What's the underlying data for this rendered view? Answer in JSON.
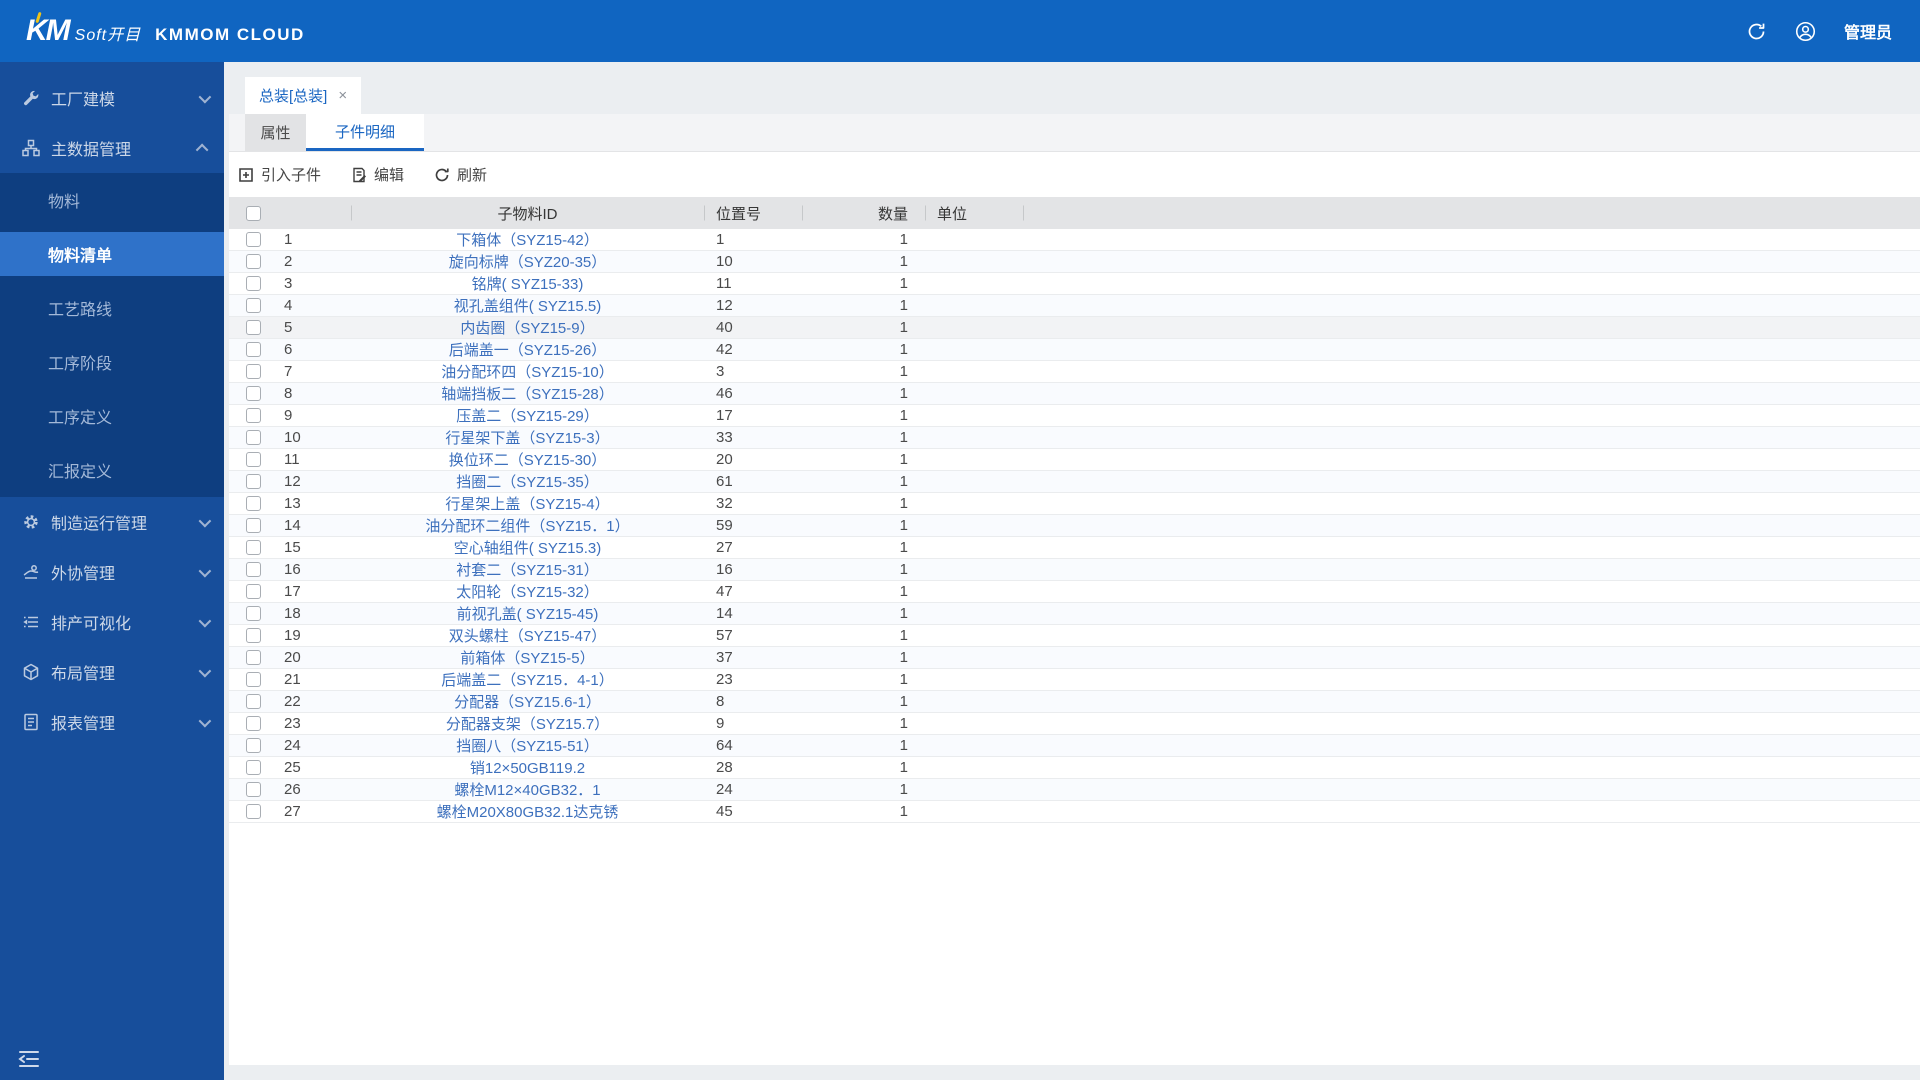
{
  "colors": {
    "header_blue": "#1065c1",
    "sidebar_navy": "#174e9b",
    "submenu_navy": "#0e3e80",
    "active_item_blue": "#2f72c9",
    "accent_blue": "#1a66c2",
    "link_blue": "#3d70bd"
  },
  "topbar": {
    "logo_km": "KM",
    "logo_soft": "Soft开目",
    "brand": "KMMOM CLOUD",
    "user_label": "管理员"
  },
  "sidebar": {
    "items": [
      {
        "label": "工厂建模",
        "icon": "wrench-icon",
        "chevron": "down"
      },
      {
        "label": "主数据管理",
        "icon": "sitemap-icon",
        "chevron": "up",
        "children": [
          "物料",
          "物料清单",
          "工艺路线",
          "工序阶段",
          "工序定义",
          "汇报定义"
        ],
        "active_child": "物料清单"
      },
      {
        "label": "制造运行管理",
        "icon": "gear-icon",
        "chevron": "down"
      },
      {
        "label": "外协管理",
        "icon": "outsourcing-icon",
        "chevron": "down"
      },
      {
        "label": "排产可视化",
        "icon": "schedule-list-icon",
        "chevron": "down"
      },
      {
        "label": "布局管理",
        "icon": "cube-icon",
        "chevron": "down"
      },
      {
        "label": "报表管理",
        "icon": "report-icon",
        "chevron": "down"
      }
    ]
  },
  "tabs": {
    "page_tab": "总装[总装]",
    "close_glyph": "×",
    "subtabs": [
      "属性",
      "子件明细"
    ],
    "active_subtab": "子件明细"
  },
  "toolbar": {
    "buttons": [
      {
        "label": "引入子件",
        "icon": "import-part-icon"
      },
      {
        "label": "编辑",
        "icon": "edit-icon"
      },
      {
        "label": "刷新",
        "icon": "refresh-icon"
      }
    ]
  },
  "table": {
    "columns": {
      "id": "子物料ID",
      "position": "位置号",
      "qty": "数量",
      "unit": "单位"
    },
    "highlighted_row_num": 5,
    "rows": [
      {
        "num": 1,
        "id": "下箱体（SYZ15-42）",
        "position": "1",
        "qty": "1",
        "unit": ""
      },
      {
        "num": 2,
        "id": "旋向标牌（SYZ20-35）",
        "position": "10",
        "qty": "1",
        "unit": ""
      },
      {
        "num": 3,
        "id": "铭牌( SYZ15-33)",
        "position": "11",
        "qty": "1",
        "unit": ""
      },
      {
        "num": 4,
        "id": "视孔盖组件( SYZ15.5)",
        "position": "12",
        "qty": "1",
        "unit": ""
      },
      {
        "num": 5,
        "id": "内齿圈（SYZ15-9）",
        "position": "40",
        "qty": "1",
        "unit": ""
      },
      {
        "num": 6,
        "id": "后端盖一（SYZ15-26）",
        "position": "42",
        "qty": "1",
        "unit": ""
      },
      {
        "num": 7,
        "id": "油分配环四（SYZ15-10）",
        "position": "3",
        "qty": "1",
        "unit": ""
      },
      {
        "num": 8,
        "id": "轴端挡板二（SYZ15-28）",
        "position": "46",
        "qty": "1",
        "unit": ""
      },
      {
        "num": 9,
        "id": "压盖二（SYZ15-29）",
        "position": "17",
        "qty": "1",
        "unit": ""
      },
      {
        "num": 10,
        "id": "行星架下盖（SYZ15-3）",
        "position": "33",
        "qty": "1",
        "unit": ""
      },
      {
        "num": 11,
        "id": "换位环二（SYZ15-30）",
        "position": "20",
        "qty": "1",
        "unit": ""
      },
      {
        "num": 12,
        "id": "挡圈二（SYZ15-35）",
        "position": "61",
        "qty": "1",
        "unit": ""
      },
      {
        "num": 13,
        "id": "行星架上盖（SYZ15-4）",
        "position": "32",
        "qty": "1",
        "unit": ""
      },
      {
        "num": 14,
        "id": "油分配环二组件（SYZ15．1）",
        "position": "59",
        "qty": "1",
        "unit": ""
      },
      {
        "num": 15,
        "id": "空心轴组件( SYZ15.3)",
        "position": "27",
        "qty": "1",
        "unit": ""
      },
      {
        "num": 16,
        "id": "衬套二（SYZ15-31）",
        "position": "16",
        "qty": "1",
        "unit": ""
      },
      {
        "num": 17,
        "id": "太阳轮（SYZ15-32）",
        "position": "47",
        "qty": "1",
        "unit": ""
      },
      {
        "num": 18,
        "id": "前视孔盖( SYZ15-45)",
        "position": "14",
        "qty": "1",
        "unit": ""
      },
      {
        "num": 19,
        "id": "双头螺柱（SYZ15-47）",
        "position": "57",
        "qty": "1",
        "unit": ""
      },
      {
        "num": 20,
        "id": "前箱体（SYZ15-5）",
        "position": "37",
        "qty": "1",
        "unit": ""
      },
      {
        "num": 21,
        "id": "后端盖二（SYZ15．4-1）",
        "position": "23",
        "qty": "1",
        "unit": ""
      },
      {
        "num": 22,
        "id": "分配器（SYZ15.6-1）",
        "position": "8",
        "qty": "1",
        "unit": ""
      },
      {
        "num": 23,
        "id": "分配器支架（SYZ15.7）",
        "position": "9",
        "qty": "1",
        "unit": ""
      },
      {
        "num": 24,
        "id": "挡圈八（SYZ15-51）",
        "position": "64",
        "qty": "1",
        "unit": ""
      },
      {
        "num": 25,
        "id": "销12×50GB119.2",
        "position": "28",
        "qty": "1",
        "unit": ""
      },
      {
        "num": 26,
        "id": "螺栓M12×40GB32．1",
        "position": "24",
        "qty": "1",
        "unit": ""
      },
      {
        "num": 27,
        "id": "螺栓M20X80GB32.1达克锈",
        "position": "45",
        "qty": "1",
        "unit": ""
      }
    ]
  }
}
